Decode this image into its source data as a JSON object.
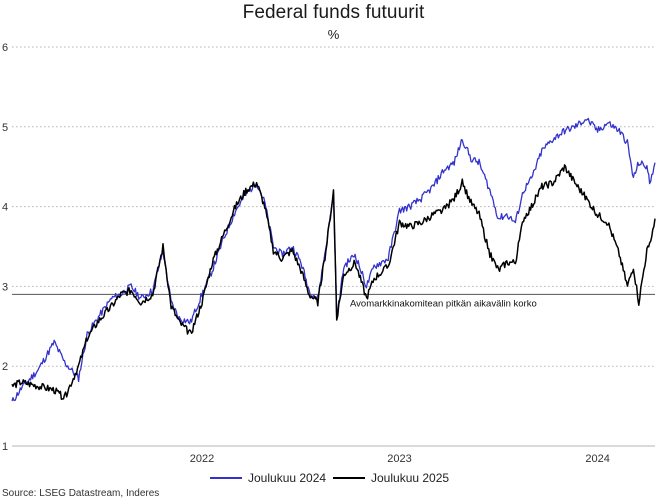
{
  "title": "Federal funds futuurit",
  "subtitle": "%",
  "source": "Source: LSEG Datastream, Inderes",
  "chart_data": {
    "type": "line",
    "title": "Federal funds futuurit",
    "ylabel": "%",
    "ylim": [
      1,
      6
    ],
    "yticks": [
      1,
      2,
      3,
      4,
      5,
      6
    ],
    "xlim": [
      "2021-07-15",
      "2024-10-15"
    ],
    "xticks": [
      {
        "date": "2022-07-01",
        "label": "2022"
      },
      {
        "date": "2023-07-01",
        "label": "2023"
      },
      {
        "date": "2024-07-01",
        "label": "2024"
      }
    ],
    "grid": "horizontal dotted",
    "legend_position": "bottom",
    "reference_line": {
      "y": 2.9,
      "label": "Avomarkkinakomitean pitkän aikavälin korko"
    },
    "series": [
      {
        "name": "Joulukuu 2024",
        "color": "#3333cc",
        "points": [
          [
            "2021-07-15",
            1.55
          ],
          [
            "2021-08-01",
            1.72
          ],
          [
            "2021-09-01",
            1.95
          ],
          [
            "2021-10-01",
            2.3
          ],
          [
            "2021-10-20",
            2.05
          ],
          [
            "2021-11-15",
            1.85
          ],
          [
            "2021-12-01",
            2.4
          ],
          [
            "2021-12-20",
            2.6
          ],
          [
            "2022-01-15",
            2.85
          ],
          [
            "2022-02-01",
            2.9
          ],
          [
            "2022-02-20",
            3.0
          ],
          [
            "2022-03-10",
            2.85
          ],
          [
            "2022-04-01",
            2.95
          ],
          [
            "2022-04-20",
            3.45
          ],
          [
            "2022-05-05",
            2.8
          ],
          [
            "2022-05-20",
            2.6
          ],
          [
            "2022-06-10",
            2.55
          ],
          [
            "2022-07-01",
            2.9
          ],
          [
            "2022-07-20",
            3.2
          ],
          [
            "2022-08-10",
            3.6
          ],
          [
            "2022-09-01",
            3.95
          ],
          [
            "2022-09-20",
            4.15
          ],
          [
            "2022-10-10",
            4.3
          ],
          [
            "2022-10-25",
            4.05
          ],
          [
            "2022-11-10",
            3.5
          ],
          [
            "2022-11-25",
            3.4
          ],
          [
            "2022-12-15",
            3.5
          ],
          [
            "2022-12-31",
            3.3
          ],
          [
            "2023-01-15",
            2.95
          ],
          [
            "2023-01-31",
            2.85
          ],
          [
            "2023-02-15",
            3.5
          ],
          [
            "2023-03-01",
            4.15
          ],
          [
            "2023-03-07",
            2.6
          ],
          [
            "2023-03-20",
            3.25
          ],
          [
            "2023-04-10",
            3.4
          ],
          [
            "2023-05-01",
            3.0
          ],
          [
            "2023-05-15",
            3.25
          ],
          [
            "2023-06-10",
            3.35
          ],
          [
            "2023-07-01",
            3.95
          ],
          [
            "2023-07-20",
            4.0
          ],
          [
            "2023-08-10",
            4.1
          ],
          [
            "2023-09-01",
            4.25
          ],
          [
            "2023-09-20",
            4.45
          ],
          [
            "2023-10-10",
            4.55
          ],
          [
            "2023-10-25",
            4.85
          ],
          [
            "2023-11-10",
            4.6
          ],
          [
            "2023-11-25",
            4.55
          ],
          [
            "2023-12-15",
            4.2
          ],
          [
            "2023-12-31",
            3.85
          ],
          [
            "2024-01-15",
            3.9
          ],
          [
            "2024-01-31",
            3.8
          ],
          [
            "2024-02-15",
            4.2
          ],
          [
            "2024-03-01",
            4.35
          ],
          [
            "2024-03-20",
            4.7
          ],
          [
            "2024-04-10",
            4.85
          ],
          [
            "2024-05-01",
            4.95
          ],
          [
            "2024-05-20",
            5.0
          ],
          [
            "2024-06-10",
            5.1
          ],
          [
            "2024-07-01",
            4.95
          ],
          [
            "2024-07-20",
            5.05
          ],
          [
            "2024-08-10",
            4.95
          ],
          [
            "2024-08-25",
            4.8
          ],
          [
            "2024-09-05",
            4.35
          ],
          [
            "2024-09-15",
            4.55
          ],
          [
            "2024-09-30",
            4.5
          ],
          [
            "2024-10-05",
            4.3
          ],
          [
            "2024-10-15",
            4.55
          ]
        ]
      },
      {
        "name": "Joulukuu 2025",
        "color": "#000000",
        "points": [
          [
            "2021-07-15",
            1.75
          ],
          [
            "2021-08-01",
            1.8
          ],
          [
            "2021-09-01",
            1.75
          ],
          [
            "2021-10-01",
            1.7
          ],
          [
            "2021-10-20",
            1.6
          ],
          [
            "2021-11-15",
            2.0
          ],
          [
            "2021-12-01",
            2.35
          ],
          [
            "2021-12-20",
            2.55
          ],
          [
            "2022-01-15",
            2.75
          ],
          [
            "2022-02-01",
            2.9
          ],
          [
            "2022-02-20",
            2.95
          ],
          [
            "2022-03-10",
            2.8
          ],
          [
            "2022-04-01",
            2.9
          ],
          [
            "2022-04-20",
            3.5
          ],
          [
            "2022-05-05",
            2.75
          ],
          [
            "2022-05-20",
            2.55
          ],
          [
            "2022-06-10",
            2.4
          ],
          [
            "2022-07-01",
            2.8
          ],
          [
            "2022-07-20",
            3.3
          ],
          [
            "2022-08-10",
            3.65
          ],
          [
            "2022-09-01",
            4.0
          ],
          [
            "2022-09-20",
            4.2
          ],
          [
            "2022-10-10",
            4.3
          ],
          [
            "2022-10-25",
            4.0
          ],
          [
            "2022-11-10",
            3.45
          ],
          [
            "2022-11-25",
            3.35
          ],
          [
            "2022-12-15",
            3.45
          ],
          [
            "2022-12-31",
            3.2
          ],
          [
            "2023-01-15",
            2.9
          ],
          [
            "2023-01-31",
            2.8
          ],
          [
            "2023-02-15",
            3.45
          ],
          [
            "2023-03-01",
            4.2
          ],
          [
            "2023-03-07",
            2.6
          ],
          [
            "2023-03-20",
            3.15
          ],
          [
            "2023-04-10",
            3.3
          ],
          [
            "2023-05-01",
            2.85
          ],
          [
            "2023-05-15",
            3.1
          ],
          [
            "2023-06-10",
            3.25
          ],
          [
            "2023-07-01",
            3.8
          ],
          [
            "2023-07-20",
            3.75
          ],
          [
            "2023-08-10",
            3.8
          ],
          [
            "2023-09-01",
            3.9
          ],
          [
            "2023-09-20",
            3.95
          ],
          [
            "2023-10-10",
            4.1
          ],
          [
            "2023-10-25",
            4.3
          ],
          [
            "2023-11-10",
            4.05
          ],
          [
            "2023-11-25",
            3.9
          ],
          [
            "2023-12-15",
            3.4
          ],
          [
            "2023-12-31",
            3.2
          ],
          [
            "2024-01-15",
            3.3
          ],
          [
            "2024-01-31",
            3.3
          ],
          [
            "2024-02-15",
            3.85
          ],
          [
            "2024-03-01",
            4.0
          ],
          [
            "2024-03-20",
            4.25
          ],
          [
            "2024-04-10",
            4.3
          ],
          [
            "2024-05-01",
            4.5
          ],
          [
            "2024-05-20",
            4.3
          ],
          [
            "2024-06-10",
            4.1
          ],
          [
            "2024-07-01",
            3.9
          ],
          [
            "2024-07-20",
            3.8
          ],
          [
            "2024-08-10",
            3.4
          ],
          [
            "2024-08-25",
            3.0
          ],
          [
            "2024-09-05",
            3.25
          ],
          [
            "2024-09-15",
            2.8
          ],
          [
            "2024-09-30",
            3.45
          ],
          [
            "2024-10-05",
            3.5
          ],
          [
            "2024-10-15",
            3.85
          ]
        ]
      }
    ]
  }
}
